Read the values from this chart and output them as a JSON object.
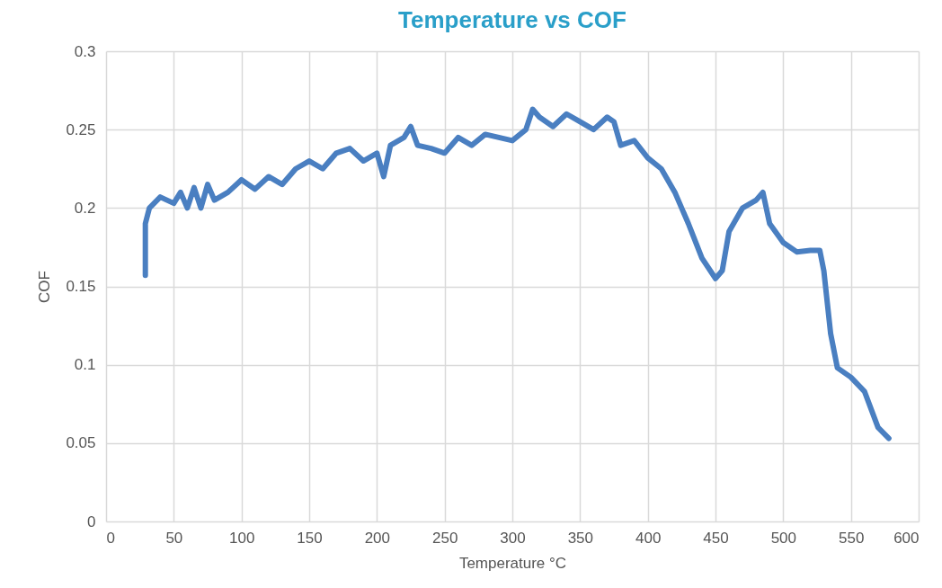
{
  "chart_data": {
    "type": "line",
    "title": "Temperature vs COF",
    "xlabel": "Temperature °C",
    "ylabel": "COF",
    "xlim": [
      0,
      600
    ],
    "xticks": [
      0,
      50,
      100,
      150,
      200,
      250,
      300,
      350,
      400,
      450,
      500,
      550,
      600
    ],
    "ylim": [
      0,
      0.3
    ],
    "yticks": [
      0,
      0.05,
      0.1,
      0.15,
      0.2,
      0.25,
      0.3
    ],
    "grid": true,
    "marker": "none",
    "line_style": "solid",
    "series": [
      {
        "color": "#4a7fc1",
        "x": [
          29,
          29,
          32,
          40,
          50,
          55,
          60,
          65,
          70,
          75,
          80,
          90,
          100,
          110,
          120,
          130,
          140,
          150,
          160,
          170,
          180,
          190,
          200,
          205,
          210,
          220,
          225,
          230,
          240,
          250,
          260,
          270,
          280,
          290,
          300,
          310,
          315,
          320,
          330,
          340,
          350,
          360,
          370,
          375,
          380,
          390,
          400,
          410,
          420,
          430,
          440,
          450,
          455,
          460,
          470,
          480,
          485,
          490,
          500,
          510,
          520,
          527,
          530,
          535,
          540,
          550,
          560,
          570,
          578
        ],
        "values": [
          0.157,
          0.19,
          0.2,
          0.207,
          0.203,
          0.21,
          0.2,
          0.213,
          0.2,
          0.215,
          0.205,
          0.21,
          0.218,
          0.212,
          0.22,
          0.215,
          0.225,
          0.23,
          0.225,
          0.235,
          0.238,
          0.23,
          0.235,
          0.22,
          0.24,
          0.245,
          0.252,
          0.24,
          0.238,
          0.235,
          0.245,
          0.24,
          0.247,
          0.245,
          0.243,
          0.25,
          0.263,
          0.258,
          0.252,
          0.26,
          0.255,
          0.25,
          0.258,
          0.255,
          0.24,
          0.243,
          0.232,
          0.225,
          0.21,
          0.19,
          0.168,
          0.155,
          0.16,
          0.185,
          0.2,
          0.205,
          0.21,
          0.19,
          0.178,
          0.172,
          0.173,
          0.173,
          0.16,
          0.12,
          0.098,
          0.092,
          0.083,
          0.06,
          0.053
        ]
      }
    ]
  }
}
